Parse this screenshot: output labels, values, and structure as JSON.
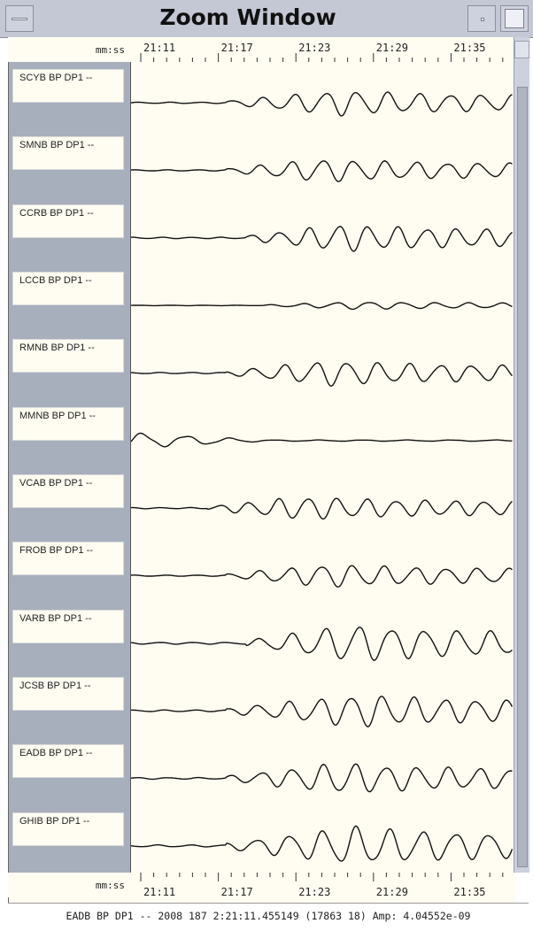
{
  "window": {
    "title": "Zoom Window"
  },
  "time_axis": {
    "unit_label": "mm:ss",
    "ticks": [
      "21:11",
      "21:17",
      "21:23",
      "21:29",
      "21:35"
    ]
  },
  "traces": [
    {
      "label": "SCYB BP DP1 --"
    },
    {
      "label": "SMNB BP DP1 --"
    },
    {
      "label": "CCRB BP DP1 --"
    },
    {
      "label": "LCCB BP DP1 --"
    },
    {
      "label": "RMNB BP DP1 --"
    },
    {
      "label": "MMNB BP DP1 --"
    },
    {
      "label": "VCAB BP DP1 --"
    },
    {
      "label": "FROB BP DP1 --"
    },
    {
      "label": "VARB BP DP1 --"
    },
    {
      "label": "JCSB BP DP1 --"
    },
    {
      "label": "EADB BP DP1 --"
    },
    {
      "label": "GHIB BP DP1 --"
    }
  ],
  "status": {
    "text": "EADB BP DP1 -- 2008 187 2:21:11.455149 (17863 18) Amp: 4.04552e-09"
  },
  "colors": {
    "trace_bg": "#fffdf2",
    "label_panel": "#a7afbd",
    "titlebar": "#c4c8d4",
    "trace_line": "#111111"
  }
}
